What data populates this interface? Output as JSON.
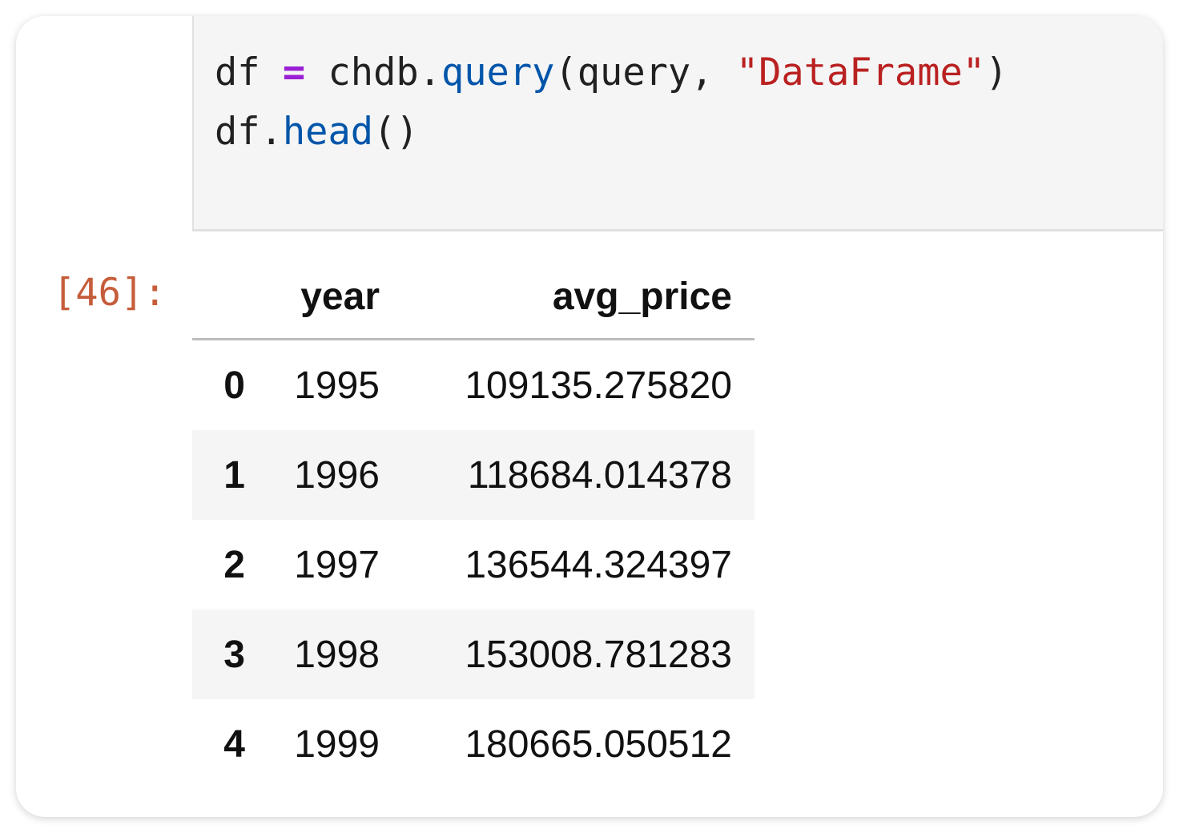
{
  "cell": {
    "prompt": "[46]:",
    "code": {
      "l1_a": "df ",
      "l1_op": "=",
      "l1_b": " chdb.",
      "l1_fn": "query",
      "l1_c": "(query, ",
      "l1_str": "\"DataFrame\"",
      "l1_d": ")",
      "l2_a": "df.",
      "l2_fn": "head",
      "l2_b": "()"
    }
  },
  "table": {
    "columns": [
      "",
      "year",
      "avg_price"
    ],
    "rows": [
      {
        "index": "0",
        "year": "1995",
        "avg_price": "109135.275820"
      },
      {
        "index": "1",
        "year": "1996",
        "avg_price": "118684.014378"
      },
      {
        "index": "2",
        "year": "1997",
        "avg_price": "136544.324397"
      },
      {
        "index": "3",
        "year": "1998",
        "avg_price": "153008.781283"
      },
      {
        "index": "4",
        "year": "1999",
        "avg_price": "180665.050512"
      }
    ]
  },
  "colors": {
    "prompt": "#c65d3a",
    "keyword_op": "#9b1fd4",
    "function": "#0055aa",
    "string": "#ba2121",
    "stripe": "#f5f5f5"
  }
}
